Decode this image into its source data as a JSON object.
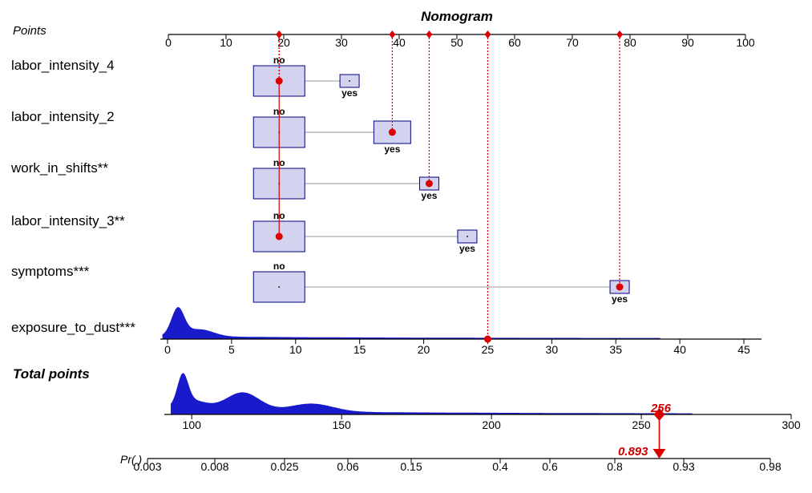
{
  "chart_data": {
    "type": "nomogram",
    "title": "Nomogram",
    "colors": {
      "box_fill": "#d3d3f0",
      "box_stroke": "#000080",
      "density_fill": "#1a1acd",
      "marker": "#dd0000"
    },
    "points_axis": {
      "label": "Points",
      "range": [
        0,
        100
      ],
      "ticks": [
        0,
        10,
        20,
        30,
        40,
        50,
        60,
        70,
        80,
        90,
        100
      ]
    },
    "variables": [
      {
        "name": "labor_intensity_4",
        "levels": [
          {
            "label": "no",
            "points": 19.2,
            "size": "large"
          },
          {
            "label": "yes",
            "points": 31.4,
            "size": "small"
          }
        ],
        "selected": "no"
      },
      {
        "name": "labor_intensity_2",
        "levels": [
          {
            "label": "no",
            "points": 19.2,
            "size": "large"
          },
          {
            "label": "yes",
            "points": 38.8,
            "size": "medium"
          }
        ],
        "selected": "yes"
      },
      {
        "name": "work_in_shifts**",
        "levels": [
          {
            "label": "no",
            "points": 19.2,
            "size": "large"
          },
          {
            "label": "yes",
            "points": 45.2,
            "size": "small"
          }
        ],
        "selected": "yes"
      },
      {
        "name": "labor_intensity_3**",
        "levels": [
          {
            "label": "no",
            "points": 19.2,
            "size": "large"
          },
          {
            "label": "yes",
            "points": 51.8,
            "size": "small"
          }
        ],
        "selected": "no"
      },
      {
        "name": "symptoms***",
        "levels": [
          {
            "label": "no",
            "points": 19.2,
            "size": "large"
          },
          {
            "label": "yes",
            "points": 78.2,
            "size": "small"
          }
        ],
        "selected": "yes"
      }
    ],
    "continuous_variable": {
      "name": "exposure_to_dust***",
      "range": [
        0,
        45
      ],
      "ticks": [
        0,
        5,
        10,
        15,
        20,
        25,
        30,
        35,
        40,
        45
      ],
      "selected_value": 25,
      "selected_points": 55.6
    },
    "total_points": {
      "label": "Total points",
      "range": [
        100,
        300
      ],
      "ticks": [
        100,
        150,
        200,
        250,
        300
      ],
      "selected": 256,
      "selected_label": "256"
    },
    "probability": {
      "label": "Pr( )",
      "ticks": [
        "0.003",
        "0.008",
        "0.025",
        "0.06",
        "0.15",
        "0.4",
        "0.6",
        "0.8",
        "0.93",
        "0.98"
      ],
      "selected": 0.893,
      "selected_label": "0.893"
    }
  }
}
